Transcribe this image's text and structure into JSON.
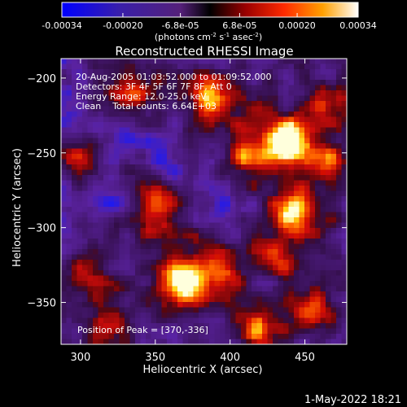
{
  "chart_data": {
    "type": "heatmap",
    "title": "Reconstructed RHESSI Image",
    "xlabel": "Heliocentric X (arcsec)",
    "ylabel": "Heliocentric Y (arcsec)",
    "xlim": [
      287,
      478
    ],
    "ylim": [
      -378,
      -187
    ],
    "x_ticks": [
      300,
      350,
      400,
      450
    ],
    "y_ticks": [
      -200,
      -250,
      -300,
      -350
    ],
    "colorbar": {
      "range": [
        -0.00034,
        0.00034
      ],
      "tick_values": [
        -0.00034,
        -0.0002,
        -6.8e-05,
        6.8e-05,
        0.0002,
        0.00034
      ],
      "tick_labels": [
        "-0.00034",
        "-0.00020",
        "-6.8e-05",
        "6.8e-05",
        "0.00020",
        "0.00034"
      ],
      "units_prefix": "(photons cm",
      "units_exp1": "-2",
      "units_mid": " s",
      "units_exp2": "-1",
      "units_mid2": " asec",
      "units_exp3": "-2",
      "units_suffix": ")"
    },
    "annotations": {
      "time": "20-Aug-2005 01:03:52.000 to 01:09:52.000",
      "detectors": "Detectors: 3F 4F 5F 6F 7F 8F, Att 0",
      "energy": "Energy Range: 12.0-25.0 keV",
      "clean": "Clean    Total counts: 6.64E+03",
      "peak": "Position of Peak = [370,-336]"
    },
    "peak_position": [
      370,
      -336
    ],
    "sources": [
      {
        "x": 370,
        "y": -336,
        "intensity": 1.0
      },
      {
        "x": 437,
        "y": -241,
        "intensity": 0.95
      },
      {
        "x": 443,
        "y": -290,
        "intensity": 0.85
      },
      {
        "x": 388,
        "y": -213,
        "intensity": 0.75
      },
      {
        "x": 412,
        "y": -251,
        "intensity": 0.55
      },
      {
        "x": 333,
        "y": -212,
        "intensity": 0.55
      },
      {
        "x": 352,
        "y": -282,
        "intensity": 0.6
      },
      {
        "x": 395,
        "y": -328,
        "intensity": 0.55
      },
      {
        "x": 420,
        "y": -368,
        "intensity": 0.6
      },
      {
        "x": 455,
        "y": -355,
        "intensity": 0.55
      },
      {
        "x": 305,
        "y": -330,
        "intensity": 0.45
      },
      {
        "x": 320,
        "y": -365,
        "intensity": 0.5
      },
      {
        "x": 468,
        "y": -215,
        "intensity": 0.5
      },
      {
        "x": 300,
        "y": -252,
        "intensity": 0.4
      },
      {
        "x": 430,
        "y": -320,
        "intensity": 0.45
      },
      {
        "x": 350,
        "y": -305,
        "intensity": 0.45
      },
      {
        "x": 462,
        "y": -255,
        "intensity": 0.5
      }
    ],
    "negatives": [
      {
        "x": 320,
        "y": -282,
        "intensity": 0.8
      },
      {
        "x": 355,
        "y": -258,
        "intensity": 0.7
      },
      {
        "x": 343,
        "y": -318,
        "intensity": 0.75
      },
      {
        "x": 400,
        "y": -290,
        "intensity": 0.6
      },
      {
        "x": 328,
        "y": -240,
        "intensity": 0.55
      },
      {
        "x": 290,
        "y": -222,
        "intensity": 0.5
      },
      {
        "x": 420,
        "y": -342,
        "intensity": 0.45
      },
      {
        "x": 380,
        "y": -262,
        "intensity": 0.5
      }
    ]
  },
  "footer": {
    "date": "1-May-2022 18:21"
  }
}
